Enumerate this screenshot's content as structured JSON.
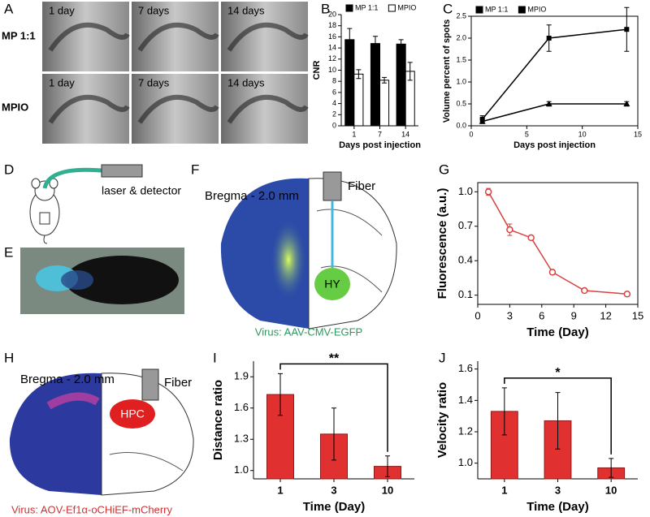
{
  "panel_labels": [
    "A",
    "B",
    "C",
    "D",
    "E",
    "F",
    "G",
    "H",
    "I",
    "J"
  ],
  "panel_a": {
    "row_labels": [
      "MP 1:1",
      "MPIO"
    ],
    "image_labels": [
      [
        "1 day",
        "7 days",
        "14 days"
      ],
      [
        "1 day",
        "7 days",
        "14 days"
      ]
    ]
  },
  "panel_d": {
    "label": "laser & detector"
  },
  "panel_f": {
    "bregma": "Bregma - 2.0 mm",
    "fiber": "Fiber",
    "region": "HY",
    "virus": "Virus: AAV-CMV-EGFP"
  },
  "panel_h": {
    "bregma": "Bregma - 2.0 mm",
    "fiber": "Fiber",
    "region": "HPC",
    "virus": "Virus: AOV-Ef1α-oCHiEF-mCherry"
  },
  "chart_data": [
    {
      "type": "bar",
      "ylabel": "CNR",
      "xlabel": "Days post injection",
      "categories": [
        "1",
        "7",
        "14"
      ],
      "legend": "top",
      "ylim": [
        0,
        20
      ],
      "yticks": [
        0,
        2,
        4,
        6,
        8,
        10,
        12,
        14,
        16,
        18,
        20
      ],
      "series": [
        {
          "name": "MP 1:1",
          "color": "#000000",
          "values": [
            15.5,
            14.8,
            14.7
          ],
          "errors": [
            2,
            1.3,
            0.8
          ]
        },
        {
          "name": "MPIO",
          "color": "#ffffff",
          "values": [
            9.3,
            8.2,
            9.8
          ],
          "errors": [
            0.8,
            0.5,
            1.6
          ]
        }
      ]
    },
    {
      "type": "line",
      "ylabel": "Volume percent of spots",
      "xlabel": "Days post injection",
      "legend": "top",
      "frame": true,
      "xlim": [
        0,
        15
      ],
      "xticks": [
        0,
        5,
        10,
        15
      ],
      "ylim": [
        0,
        2.5
      ],
      "yticks": [
        {
          "value": 0,
          "label": "0.0"
        },
        {
          "value": 0.5,
          "label": "0.5"
        },
        {
          "value": 1,
          "label": "1.0"
        },
        {
          "value": 1.5,
          "label": "1.5"
        },
        {
          "value": 2,
          "label": "2.0"
        },
        {
          "value": 2.5,
          "label": "2.5"
        }
      ],
      "series": [
        {
          "name": "MP 1:1",
          "color": "#000000",
          "marker": "square",
          "x": [
            1,
            7,
            14
          ],
          "values": [
            0.15,
            2.0,
            2.2
          ],
          "errors": [
            0.08,
            0.3,
            0.5
          ]
        },
        {
          "name": "MPIO",
          "color": "#000000",
          "marker": "triangle",
          "x": [
            1,
            7,
            14
          ],
          "values": [
            0.1,
            0.5,
            0.5
          ],
          "errors": [
            0.05,
            0.05,
            0.05
          ]
        }
      ]
    },
    {
      "type": "line",
      "ylabel": "Fluorescence (a.u.)",
      "xlabel": "Time (Day)",
      "frame": true,
      "color": "#d94040",
      "marker": "circle",
      "xlim": [
        0,
        15
      ],
      "xticks": [
        0,
        3,
        6,
        9,
        12,
        15
      ],
      "ylim": [
        0.02,
        1.08
      ],
      "yticks": [
        {
          "value": 0.1,
          "label": "0.1"
        },
        {
          "value": 0.4,
          "label": "0.4"
        },
        {
          "value": 0.7,
          "label": "0.7"
        },
        {
          "value": 1,
          "label": "1.0"
        }
      ],
      "x": [
        1,
        3,
        5,
        7,
        10,
        14
      ],
      "values": [
        1.0,
        0.67,
        0.6,
        0.3,
        0.14,
        0.11
      ],
      "errors": [
        0.03,
        0.05,
        0.01,
        0.02,
        0.015,
        0.015
      ]
    },
    {
      "type": "bar",
      "ylabel": "Distance ratio",
      "xlabel": "Time (Day)",
      "color": "#e03030",
      "annotation": "**",
      "categories": [
        "1",
        "3",
        "10"
      ],
      "values": [
        1.73,
        1.35,
        1.04
      ],
      "errors": [
        0.2,
        0.25,
        0.1
      ],
      "ylim": [
        0.92,
        2.05
      ],
      "yticks": [
        {
          "value": 1,
          "label": "1.0"
        },
        {
          "value": 1.3,
          "label": "1.3"
        },
        {
          "value": 1.6,
          "label": "1.6"
        },
        {
          "value": 1.9,
          "label": "1.9"
        }
      ]
    },
    {
      "type": "bar",
      "ylabel": "Velocity ratio",
      "xlabel": "Time (Day)",
      "color": "#e03030",
      "annotation": "*",
      "categories": [
        "1",
        "3",
        "10"
      ],
      "values": [
        1.33,
        1.27,
        0.97
      ],
      "errors": [
        0.15,
        0.18,
        0.06
      ],
      "ylim": [
        0.9,
        1.65
      ],
      "yticks": [
        {
          "value": 1,
          "label": "1.0"
        },
        {
          "value": 1.2,
          "label": "1.2"
        },
        {
          "value": 1.4,
          "label": "1.4"
        },
        {
          "value": 1.6,
          "label": "1.6"
        }
      ]
    }
  ]
}
